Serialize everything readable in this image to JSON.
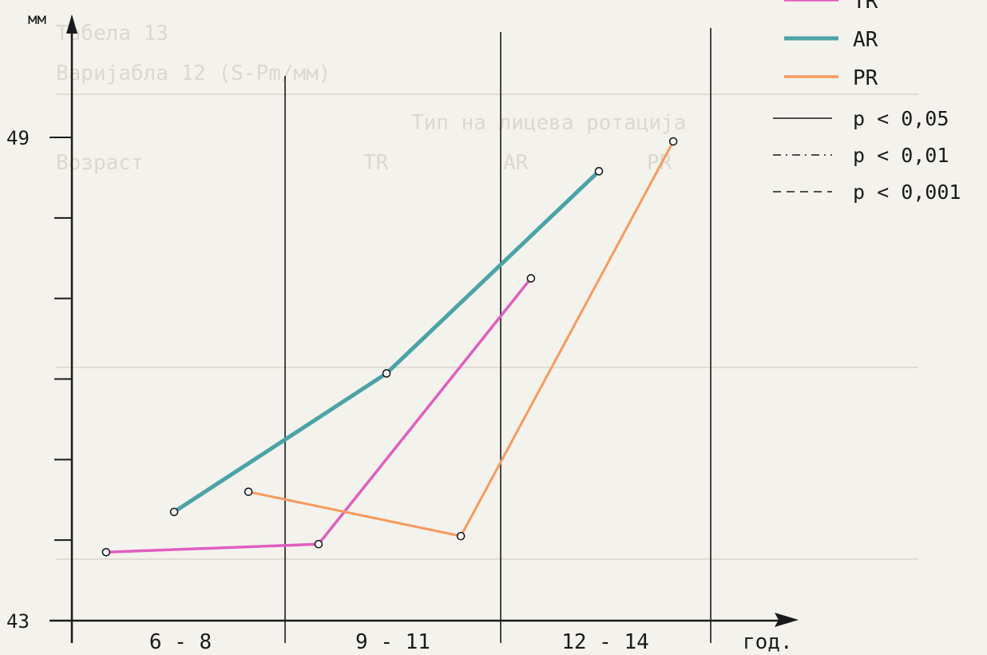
{
  "chart_data": {
    "type": "line",
    "title": "",
    "y_unit": "мм",
    "x_unit": "год.",
    "ylim": [
      43,
      49
    ],
    "y_ticks": [
      {
        "value": 43,
        "label": "43"
      },
      {
        "value": 44,
        "label": ""
      },
      {
        "value": 45,
        "label": ""
      },
      {
        "value": 46,
        "label": ""
      },
      {
        "value": 47,
        "label": ""
      },
      {
        "value": 48,
        "label": ""
      },
      {
        "value": 49,
        "label": "49"
      }
    ],
    "categories": [
      "6 - 8",
      "9 - 11",
      "12 - 14"
    ],
    "series": [
      {
        "name": "TR",
        "color": "#e05ec0",
        "x": [
          0.15,
          1.15,
          2.15
        ],
        "values": [
          43.85,
          43.95,
          47.25
        ]
      },
      {
        "name": "AR",
        "color": "#4ba3a6",
        "x": [
          0.47,
          1.47,
          2.47
        ],
        "values": [
          44.35,
          46.07,
          48.58
        ]
      },
      {
        "name": "PR",
        "color": "#f79a5e",
        "x": [
          0.82,
          1.82,
          2.82
        ],
        "values": [
          44.6,
          44.05,
          48.95
        ]
      }
    ],
    "significance_legend": [
      {
        "style": "solid",
        "label": "p < 0,05"
      },
      {
        "style": "dashdot",
        "label": "p < 0,01"
      },
      {
        "style": "dashed",
        "label": "p < 0,001"
      }
    ],
    "legend_position": "top-right",
    "grid": false
  }
}
